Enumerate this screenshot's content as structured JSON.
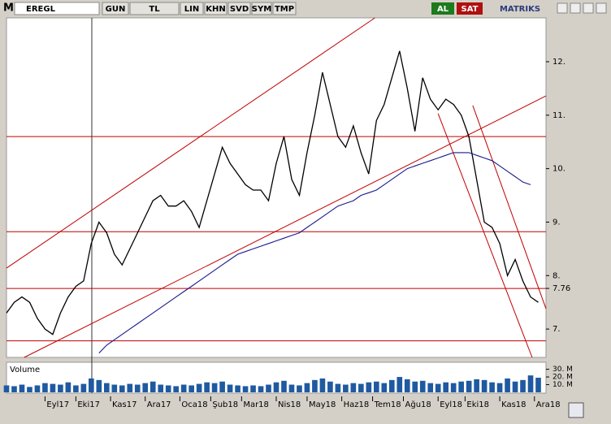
{
  "toolbar": {
    "logo": "M",
    "symbol": "EREGL",
    "buttons": [
      "GUN",
      "TL",
      "LIN",
      "KHN",
      "SVD",
      "SYM",
      "TMP"
    ],
    "buy": "AL",
    "sell": "SAT",
    "brand": "MATRIKS"
  },
  "chart_data": {
    "type": "line",
    "x": [
      0,
      1,
      2,
      3,
      4,
      5,
      6,
      7,
      8,
      9,
      10,
      11,
      12,
      13,
      14,
      15,
      16,
      17,
      18,
      19,
      20,
      21,
      22,
      23,
      24,
      25,
      26,
      27,
      28,
      29,
      30,
      31,
      32,
      33,
      34,
      35,
      36,
      37,
      38,
      39,
      40,
      41,
      42,
      43,
      44,
      45,
      46,
      47,
      48,
      49,
      50,
      51,
      52,
      53,
      54,
      55,
      56,
      57,
      58,
      59,
      60,
      61,
      62,
      63,
      64,
      65,
      66,
      67,
      68,
      69
    ],
    "series": [
      {
        "color": "#000000",
        "values": [
          7.3,
          7.5,
          7.6,
          7.5,
          7.2,
          7.0,
          6.9,
          7.3,
          7.6,
          7.8,
          7.9,
          8.6,
          9.0,
          8.8,
          8.4,
          8.2,
          8.5,
          8.8,
          9.1,
          9.4,
          9.5,
          9.3,
          9.3,
          9.4,
          9.2,
          8.9,
          9.4,
          9.9,
          10.4,
          10.1,
          9.9,
          9.7,
          9.6,
          9.6,
          9.4,
          10.1,
          10.6,
          9.8,
          9.5,
          10.3,
          11.0,
          11.8,
          11.2,
          10.6,
          10.4,
          10.8,
          10.3,
          9.9,
          10.9,
          11.2,
          11.7,
          12.2,
          11.5,
          10.7,
          11.7,
          11.3,
          11.1,
          11.3,
          11.2,
          11.0,
          10.6,
          9.8,
          9.0,
          8.9,
          8.6,
          8.0,
          8.3,
          7.9,
          7.6,
          7.5
        ]
      },
      {
        "color": "#1a1a8c",
        "values": [
          null,
          null,
          null,
          null,
          null,
          null,
          null,
          null,
          null,
          null,
          null,
          null,
          6.55,
          6.7,
          6.8,
          6.9,
          7.0,
          7.1,
          7.2,
          7.3,
          7.4,
          7.5,
          7.6,
          7.7,
          7.8,
          7.9,
          8.0,
          8.1,
          8.2,
          8.3,
          8.4,
          8.45,
          8.5,
          8.55,
          8.6,
          8.65,
          8.7,
          8.75,
          8.8,
          8.9,
          9.0,
          9.1,
          9.2,
          9.3,
          9.35,
          9.4,
          9.5,
          9.55,
          9.6,
          9.7,
          9.8,
          9.9,
          10.0,
          10.05,
          10.1,
          10.15,
          10.2,
          10.25,
          10.3,
          10.3,
          10.3,
          10.25,
          10.2,
          10.15,
          10.05,
          9.95,
          9.85,
          9.75,
          9.7,
          null
        ]
      }
    ],
    "xlim": [
      0,
      70
    ],
    "xticks": [
      {
        "value": 5,
        "label": "Eyl17"
      },
      {
        "value": 9,
        "label": "Eki17"
      },
      {
        "value": 13.5,
        "label": "Kas17"
      },
      {
        "value": 18,
        "label": "Ara17"
      },
      {
        "value": 22.5,
        "label": "Oca18"
      },
      {
        "value": 26.5,
        "label": "Şub18"
      },
      {
        "value": 30.5,
        "label": "Mar18"
      },
      {
        "value": 35,
        "label": "Nis18"
      },
      {
        "value": 39,
        "label": "May18"
      },
      {
        "value": 43.5,
        "label": "Haz18"
      },
      {
        "value": 47.5,
        "label": "Tem18"
      },
      {
        "value": 51.5,
        "label": "Ağu18"
      },
      {
        "value": 56,
        "label": "Eyl18"
      },
      {
        "value": 59.5,
        "label": "Eki18"
      },
      {
        "value": 64,
        "label": "Kas18"
      },
      {
        "value": 68.5,
        "label": "Ara18"
      }
    ],
    "ylim": [
      6.47,
      12.82
    ],
    "yticks": [
      {
        "value": 7,
        "label": "7."
      },
      7.76,
      {
        "value": 8,
        "label": "8."
      },
      {
        "value": 9,
        "label": "9."
      },
      {
        "value": 10,
        "label": "10."
      },
      {
        "value": 11,
        "label": "11."
      },
      {
        "value": 12,
        "label": "12."
      }
    ],
    "horizontal_lines": [
      10.6,
      8.82,
      7.76,
      6.78
    ],
    "line_color": "#c00000",
    "trend_lines": [
      [
        [
          0,
          8.14
        ],
        [
          47.8,
          12.82
        ]
      ],
      [
        [
          2.3,
          6.47
        ],
        [
          70,
          11.36
        ]
      ],
      [
        [
          56,
          11.03
        ],
        [
          68.2,
          6.47
        ]
      ],
      [
        [
          60.5,
          11.18
        ],
        [
          70,
          7.38
        ]
      ]
    ],
    "volume": {
      "label": "Volume",
      "color": "#1f5aa0",
      "ylim": [
        0,
        37
      ],
      "yticks": [
        {
          "value": 10,
          "label": "10. M"
        },
        {
          "value": 20,
          "label": "20. M"
        },
        {
          "value": 30,
          "label": "30. M"
        }
      ],
      "values": [
        9,
        8,
        10,
        7,
        9,
        12,
        11,
        10,
        13,
        9,
        11,
        18,
        16,
        12,
        10,
        9,
        11,
        10,
        12,
        14,
        10,
        9,
        8,
        10,
        9,
        11,
        13,
        12,
        14,
        10,
        9,
        8,
        9,
        8,
        10,
        13,
        15,
        10,
        9,
        12,
        16,
        18,
        14,
        11,
        10,
        12,
        11,
        13,
        14,
        12,
        16,
        20,
        17,
        14,
        15,
        12,
        11,
        13,
        12,
        14,
        15,
        17,
        16,
        13,
        12,
        18,
        14,
        16,
        22,
        19
      ]
    }
  }
}
